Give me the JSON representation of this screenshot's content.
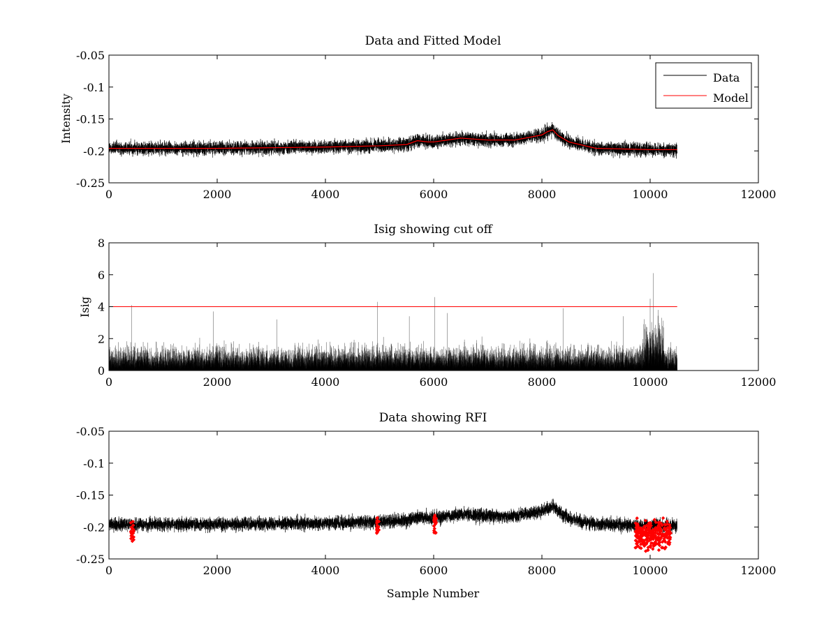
{
  "figure": {
    "background": "#ffffff"
  },
  "colors": {
    "data": "#000000",
    "model": "#ff0000",
    "rfi": "#ff0000",
    "cutoff": "#ff0000"
  },
  "chart_data": [
    {
      "type": "line",
      "title": "Data and Fitted Model",
      "xlabel": "",
      "ylabel": "Intensity",
      "xlim": [
        0,
        12000
      ],
      "ylim": [
        -0.25,
        -0.05
      ],
      "y_reversed": true,
      "xticks": [
        0,
        2000,
        4000,
        6000,
        8000,
        10000,
        12000
      ],
      "xtick_labels": [
        "0",
        "2000",
        "4000",
        "6000",
        "8000",
        "10000",
        "12000"
      ],
      "yticks": [
        -0.25,
        -0.2,
        -0.15,
        -0.1,
        -0.05
      ],
      "ytick_labels": [
        "-0.25",
        "-0.2",
        "-0.15",
        "-0.1",
        "-0.05"
      ],
      "grid": false,
      "legend": "top-right",
      "series": [
        {
          "name": "Data",
          "color": "#000000",
          "n_points": 10500,
          "noise_amplitude": 0.009,
          "x": [
            0,
            1000,
            2000,
            3000,
            4000,
            5000,
            5500,
            5700,
            5900,
            6000,
            6500,
            7000,
            7500,
            8000,
            8100,
            8200,
            8300,
            8500,
            9000,
            9500,
            10000,
            10500
          ],
          "y": [
            -0.196,
            -0.196,
            -0.196,
            -0.195,
            -0.194,
            -0.192,
            -0.19,
            -0.184,
            -0.186,
            -0.186,
            -0.18,
            -0.183,
            -0.183,
            -0.175,
            -0.17,
            -0.167,
            -0.176,
            -0.186,
            -0.196,
            -0.197,
            -0.198,
            -0.198
          ]
        },
        {
          "name": "Model",
          "color": "#ff0000",
          "x": [
            0,
            1000,
            2000,
            3000,
            4000,
            5000,
            5500,
            5700,
            5900,
            6000,
            6500,
            7000,
            7500,
            8000,
            8100,
            8200,
            8300,
            8500,
            9000,
            9500,
            10000,
            10500
          ],
          "y": [
            -0.196,
            -0.196,
            -0.196,
            -0.195,
            -0.194,
            -0.192,
            -0.19,
            -0.184,
            -0.186,
            -0.186,
            -0.18,
            -0.183,
            -0.183,
            -0.175,
            -0.17,
            -0.167,
            -0.176,
            -0.186,
            -0.196,
            -0.197,
            -0.198,
            -0.198
          ]
        }
      ]
    },
    {
      "type": "line",
      "title": "Isig showing cut off",
      "xlabel": "",
      "ylabel": "Isig",
      "xlim": [
        0,
        12000
      ],
      "ylim": [
        0,
        8
      ],
      "xticks": [
        0,
        2000,
        4000,
        6000,
        8000,
        10000,
        12000
      ],
      "xtick_labels": [
        "0",
        "2000",
        "4000",
        "6000",
        "8000",
        "10000",
        "12000"
      ],
      "yticks": [
        0,
        2,
        4,
        6,
        8
      ],
      "ytick_labels": [
        "0",
        "2",
        "4",
        "6",
        "8"
      ],
      "grid": false,
      "series": [
        {
          "name": "Isig",
          "color": "#000000",
          "n_points": 10500,
          "typical_max": 2.0,
          "peaks": [
            {
              "x": 420,
              "y": 4.1
            },
            {
              "x": 1930,
              "y": 3.7
            },
            {
              "x": 3100,
              "y": 3.2
            },
            {
              "x": 4960,
              "y": 4.3
            },
            {
              "x": 5550,
              "y": 3.4
            },
            {
              "x": 6020,
              "y": 4.6
            },
            {
              "x": 6250,
              "y": 3.6
            },
            {
              "x": 8390,
              "y": 3.9
            },
            {
              "x": 9500,
              "y": 3.4
            },
            {
              "x": 10000,
              "y": 4.5
            },
            {
              "x": 10060,
              "y": 6.1
            },
            {
              "x": 10150,
              "y": 3.8
            }
          ]
        },
        {
          "name": "cut off",
          "color": "#ff0000",
          "x": [
            0,
            10500
          ],
          "y": [
            4,
            4
          ]
        }
      ]
    },
    {
      "type": "line",
      "title": "Data showing RFI",
      "xlabel": "Sample Number",
      "ylabel": "",
      "xlim": [
        0,
        12000
      ],
      "ylim": [
        -0.25,
        -0.05
      ],
      "y_reversed": true,
      "xticks": [
        0,
        2000,
        4000,
        6000,
        8000,
        10000,
        12000
      ],
      "xtick_labels": [
        "0",
        "2000",
        "4000",
        "6000",
        "8000",
        "10000",
        "12000"
      ],
      "yticks": [
        -0.25,
        -0.2,
        -0.15,
        -0.1,
        -0.05
      ],
      "ytick_labels": [
        "-0.25",
        "-0.2",
        "-0.15",
        "-0.1",
        "-0.05"
      ],
      "grid": false,
      "series": [
        {
          "name": "Data",
          "color": "#000000",
          "n_points": 10500,
          "noise_amplitude": 0.009
        },
        {
          "name": "RFI",
          "color": "#ff0000",
          "marker": "diamond",
          "regions": [
            {
              "x0": 400,
              "x1": 460,
              "ymin": -0.225,
              "ymax": -0.188
            },
            {
              "x0": 4940,
              "x1": 4990,
              "ymin": -0.218,
              "ymax": -0.184
            },
            {
              "x0": 6000,
              "x1": 6050,
              "ymin": -0.212,
              "ymax": -0.177
            },
            {
              "x0": 9720,
              "x1": 10380,
              "ymin": -0.238,
              "ymax": -0.186
            }
          ]
        }
      ]
    }
  ]
}
